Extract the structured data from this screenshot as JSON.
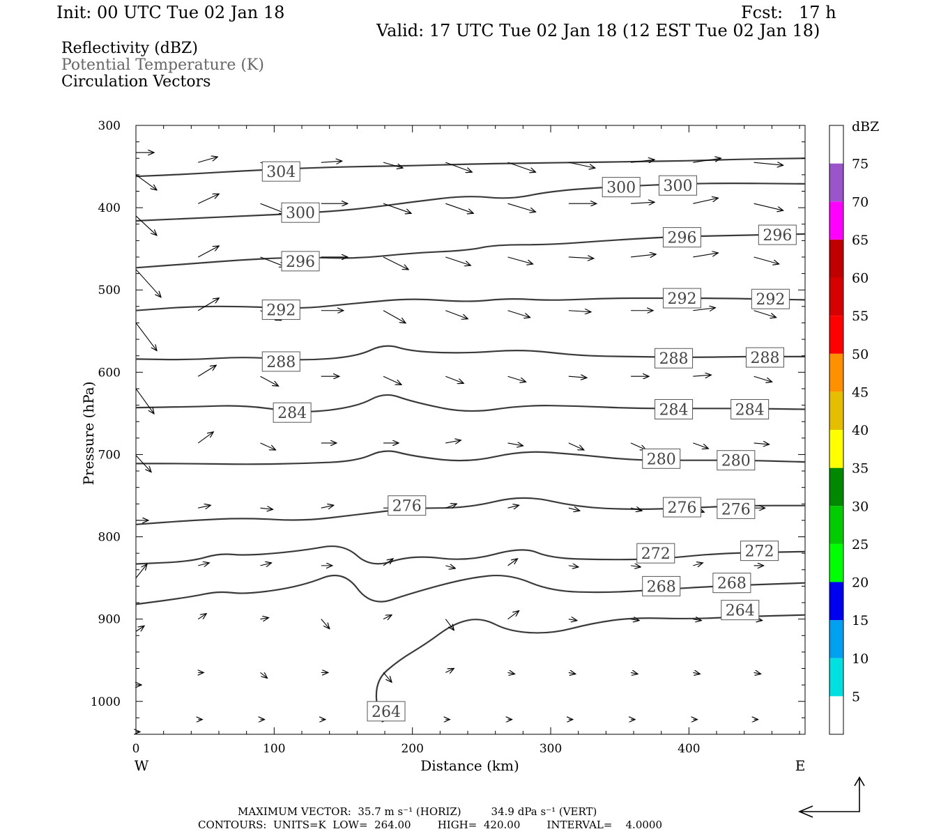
{
  "header": {
    "init": "Init: 00 UTC Tue 02 Jan 18",
    "fcst": "Fcst:   17 h",
    "valid": "Valid: 17 UTC Tue 02 Jan 18 (12 EST Tue 02 Jan 18)"
  },
  "legend": {
    "reflectivity": "Reflectivity (dBZ)",
    "theta": "Potential Temperature (K)",
    "vectors": "Circulation Vectors"
  },
  "footer": {
    "line1": "MAXIMUM VECTOR:  35.7 m s⁻¹ (HORIZ)         34.9 dPa s⁻¹ (VERT)",
    "line2": "CONTOURS:  UNITS=K  LOW=  264.00        HIGH=  420.00        INTERVAL=    4.0000"
  },
  "chart_data": {
    "type": "contour",
    "xlabel": "Distance (km)",
    "ylabel": "Pressure (hPa)",
    "xlim": [
      0,
      484
    ],
    "ylim": [
      1040,
      300
    ],
    "x_ticks": [
      0,
      100,
      200,
      300,
      400
    ],
    "y_ticks": [
      300,
      400,
      500,
      600,
      700,
      800,
      900,
      1000
    ],
    "west_label": "W",
    "east_label": "E",
    "contour_units": "K",
    "contours": [
      {
        "level": 304,
        "labels": [
          [
            105,
            356
          ]
        ],
        "points": [
          [
            0,
            362
          ],
          [
            40,
            359
          ],
          [
            80,
            355
          ],
          [
            120,
            352
          ],
          [
            160,
            350
          ],
          [
            200,
            349
          ],
          [
            240,
            347
          ],
          [
            280,
            346
          ],
          [
            320,
            345
          ],
          [
            360,
            344
          ],
          [
            400,
            343
          ],
          [
            440,
            341
          ],
          [
            484,
            340
          ]
        ]
      },
      {
        "level": 300,
        "labels": [
          [
            119,
            406
          ],
          [
            351,
            375
          ],
          [
            392,
            373
          ]
        ],
        "points": [
          [
            0,
            416
          ],
          [
            40,
            413
          ],
          [
            80,
            410
          ],
          [
            120,
            407
          ],
          [
            160,
            402
          ],
          [
            200,
            393
          ],
          [
            240,
            385
          ],
          [
            270,
            390
          ],
          [
            300,
            380
          ],
          [
            340,
            375
          ],
          [
            380,
            372
          ],
          [
            420,
            370
          ],
          [
            484,
            371
          ]
        ]
      },
      {
        "level": 296,
        "labels": [
          [
            119,
            465
          ],
          [
            395,
            436
          ],
          [
            464,
            433
          ]
        ],
        "points": [
          [
            0,
            473
          ],
          [
            40,
            468
          ],
          [
            80,
            463
          ],
          [
            120,
            460
          ],
          [
            160,
            462
          ],
          [
            200,
            455
          ],
          [
            240,
            452
          ],
          [
            260,
            445
          ],
          [
            300,
            445
          ],
          [
            340,
            440
          ],
          [
            380,
            436
          ],
          [
            420,
            434
          ],
          [
            484,
            432
          ]
        ]
      },
      {
        "level": 292,
        "labels": [
          [
            105,
            524
          ],
          [
            395,
            510
          ],
          [
            459,
            511
          ]
        ],
        "points": [
          [
            0,
            525
          ],
          [
            40,
            520
          ],
          [
            80,
            520
          ],
          [
            120,
            523
          ],
          [
            160,
            516
          ],
          [
            200,
            510
          ],
          [
            240,
            515
          ],
          [
            270,
            510
          ],
          [
            300,
            513
          ],
          [
            340,
            510
          ],
          [
            380,
            510
          ],
          [
            420,
            510
          ],
          [
            484,
            512
          ]
        ]
      },
      {
        "level": 288,
        "labels": [
          [
            105,
            587
          ],
          [
            389,
            583
          ],
          [
            455,
            582
          ]
        ],
        "points": [
          [
            0,
            584
          ],
          [
            40,
            585
          ],
          [
            80,
            581
          ],
          [
            120,
            586
          ],
          [
            160,
            581
          ],
          [
            180,
            565
          ],
          [
            200,
            575
          ],
          [
            240,
            577
          ],
          [
            280,
            572
          ],
          [
            320,
            580
          ],
          [
            360,
            581
          ],
          [
            400,
            582
          ],
          [
            440,
            581
          ],
          [
            484,
            581
          ]
        ]
      },
      {
        "level": 284,
        "labels": [
          [
            113,
            649
          ],
          [
            389,
            645
          ],
          [
            444,
            645
          ]
        ],
        "points": [
          [
            0,
            643
          ],
          [
            40,
            642
          ],
          [
            80,
            640
          ],
          [
            120,
            650
          ],
          [
            160,
            642
          ],
          [
            180,
            624
          ],
          [
            200,
            636
          ],
          [
            240,
            650
          ],
          [
            280,
            640
          ],
          [
            320,
            641
          ],
          [
            360,
            644
          ],
          [
            400,
            644
          ],
          [
            440,
            644
          ],
          [
            484,
            645
          ]
        ]
      },
      {
        "level": 280,
        "labels": [
          [
            380,
            705
          ],
          [
            434,
            707
          ]
        ],
        "points": [
          [
            0,
            711
          ],
          [
            40,
            711
          ],
          [
            80,
            712
          ],
          [
            120,
            711
          ],
          [
            160,
            708
          ],
          [
            180,
            693
          ],
          [
            200,
            702
          ],
          [
            240,
            710
          ],
          [
            280,
            695
          ],
          [
            320,
            700
          ],
          [
            360,
            707
          ],
          [
            400,
            707
          ],
          [
            440,
            707
          ],
          [
            484,
            709
          ]
        ]
      },
      {
        "level": 276,
        "labels": [
          [
            196,
            762
          ],
          [
            395,
            764
          ],
          [
            434,
            766
          ]
        ],
        "points": [
          [
            0,
            785
          ],
          [
            40,
            780
          ],
          [
            80,
            777
          ],
          [
            120,
            781
          ],
          [
            160,
            773
          ],
          [
            200,
            765
          ],
          [
            240,
            765
          ],
          [
            280,
            749
          ],
          [
            320,
            764
          ],
          [
            360,
            767
          ],
          [
            400,
            765
          ],
          [
            440,
            762
          ],
          [
            484,
            762
          ]
        ]
      },
      {
        "level": 272,
        "labels": [
          [
            376,
            820
          ],
          [
            451,
            817
          ]
        ],
        "points": [
          [
            0,
            833
          ],
          [
            40,
            830
          ],
          [
            60,
            820
          ],
          [
            80,
            823
          ],
          [
            120,
            817
          ],
          [
            150,
            808
          ],
          [
            170,
            838
          ],
          [
            200,
            822
          ],
          [
            240,
            830
          ],
          [
            280,
            812
          ],
          [
            300,
            826
          ],
          [
            340,
            828
          ],
          [
            380,
            827
          ],
          [
            420,
            820
          ],
          [
            484,
            818
          ]
        ]
      },
      {
        "level": 268,
        "labels": [
          [
            380,
            860
          ],
          [
            431,
            856
          ]
        ],
        "points": [
          [
            0,
            882
          ],
          [
            40,
            873
          ],
          [
            60,
            866
          ],
          [
            80,
            870
          ],
          [
            120,
            860
          ],
          [
            150,
            840
          ],
          [
            170,
            885
          ],
          [
            200,
            868
          ],
          [
            240,
            850
          ],
          [
            270,
            845
          ],
          [
            300,
            866
          ],
          [
            340,
            868
          ],
          [
            380,
            864
          ],
          [
            420,
            860
          ],
          [
            484,
            856
          ]
        ]
      },
      {
        "level": 264,
        "labels": [
          [
            181,
            1012
          ],
          [
            437,
            889
          ]
        ],
        "points": [
          [
            175,
            1020
          ],
          [
            173,
            975
          ],
          [
            190,
            950
          ],
          [
            210,
            930
          ],
          [
            230,
            905
          ],
          [
            250,
            898
          ],
          [
            270,
            915
          ],
          [
            300,
            918
          ],
          [
            330,
            905
          ],
          [
            360,
            898
          ],
          [
            400,
            900
          ],
          [
            440,
            897
          ],
          [
            484,
            895
          ]
        ]
      }
    ],
    "vectors": "circulation vectors (horizontal/vertical components)",
    "max_vector": {
      "horiz": 35.7,
      "horiz_units": "m s⁻¹",
      "vert": 34.9,
      "vert_units": "dPa s⁻¹"
    },
    "colorbar": {
      "title": "dBZ",
      "levels": [
        5,
        10,
        15,
        20,
        25,
        30,
        35,
        40,
        45,
        50,
        55,
        60,
        65,
        70,
        75
      ],
      "colors": [
        "#ffffff",
        "#00e0e0",
        "#00a0f0",
        "#0000f0",
        "#00ff00",
        "#00cc00",
        "#008800",
        "#ffff00",
        "#e6be00",
        "#ff9000",
        "#ff0000",
        "#d60000",
        "#c00000",
        "#ff00ff",
        "#9955c9",
        "#ffffff"
      ]
    }
  }
}
